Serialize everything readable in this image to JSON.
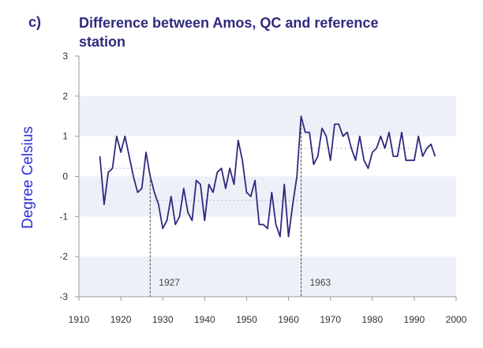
{
  "panel_label": "c)",
  "colors": {
    "band": "#eef0f8",
    "line": "#2e2a7e",
    "mean": "#b8bedd",
    "axis": "#999999",
    "ylabel": "#2b2fd6"
  },
  "chart_data": {
    "type": "line",
    "title": "Difference between Amos, QC and reference station",
    "xlabel": "",
    "ylabel": "Degree Celsius",
    "xlim": [
      1910,
      2000
    ],
    "ylim": [
      -3,
      3
    ],
    "xticks": [
      1910,
      1920,
      1930,
      1940,
      1950,
      1960,
      1970,
      1980,
      1990,
      2000
    ],
    "yticks": [
      3,
      2,
      1,
      0,
      -1,
      -2,
      -3
    ],
    "shaded_bands": [
      [
        1,
        2
      ],
      [
        -1,
        0
      ],
      [
        -3,
        -2
      ]
    ],
    "grid": false,
    "series": [
      {
        "x": [
          1915,
          1916,
          1917,
          1918,
          1919,
          1920,
          1921,
          1922,
          1923,
          1924,
          1925,
          1926,
          1927,
          1928,
          1929,
          1930,
          1931,
          1932,
          1933,
          1934,
          1935,
          1936,
          1937,
          1938,
          1939,
          1940,
          1941,
          1942,
          1943,
          1944,
          1945,
          1946,
          1947,
          1948,
          1949,
          1950,
          1951,
          1952,
          1953,
          1954,
          1955,
          1956,
          1957,
          1958,
          1959,
          1960,
          1961,
          1962,
          1963,
          1964,
          1965,
          1966,
          1967,
          1968,
          1969,
          1970,
          1971,
          1972,
          1973,
          1974,
          1975,
          1976,
          1977,
          1978,
          1979,
          1980,
          1981,
          1982,
          1983,
          1984,
          1985,
          1986,
          1987,
          1988,
          1989,
          1990,
          1991,
          1992,
          1993,
          1994,
          1995
        ],
        "y": [
          0.5,
          -0.7,
          0.1,
          0.2,
          1.0,
          0.6,
          1.0,
          0.5,
          0.0,
          -0.4,
          -0.3,
          0.6,
          0.0,
          -0.4,
          -0.7,
          -1.3,
          -1.1,
          -0.5,
          -1.2,
          -1.0,
          -0.3,
          -0.9,
          -1.1,
          -0.1,
          -0.2,
          -1.1,
          -0.2,
          -0.4,
          0.1,
          0.2,
          -0.3,
          0.2,
          -0.2,
          0.9,
          0.4,
          -0.4,
          -0.5,
          -0.1,
          -1.2,
          -1.2,
          -1.3,
          -0.4,
          -1.2,
          -1.5,
          -0.2,
          -1.5,
          -0.7,
          0.0,
          1.5,
          1.1,
          1.1,
          0.3,
          0.5,
          1.2,
          1.0,
          0.4,
          1.3,
          1.3,
          1.0,
          1.1,
          0.7,
          0.4,
          1.0,
          0.4,
          0.2,
          0.6,
          0.7,
          1.0,
          0.7,
          1.1,
          0.5,
          0.5,
          1.1,
          0.4,
          0.4,
          0.4,
          1.0,
          0.5,
          0.7,
          0.8,
          0.5
        ]
      }
    ],
    "mean_segments": [
      {
        "x": [
          1915,
          1927
        ],
        "y": 0.2
      },
      {
        "x": [
          1927,
          1963
        ],
        "y": -0.6
      },
      {
        "x": [
          1963,
          1995
        ],
        "y": 0.7
      }
    ],
    "breakpoints": [
      {
        "x": 1927,
        "label": "1927"
      },
      {
        "x": 1963,
        "label": "1963"
      }
    ]
  }
}
